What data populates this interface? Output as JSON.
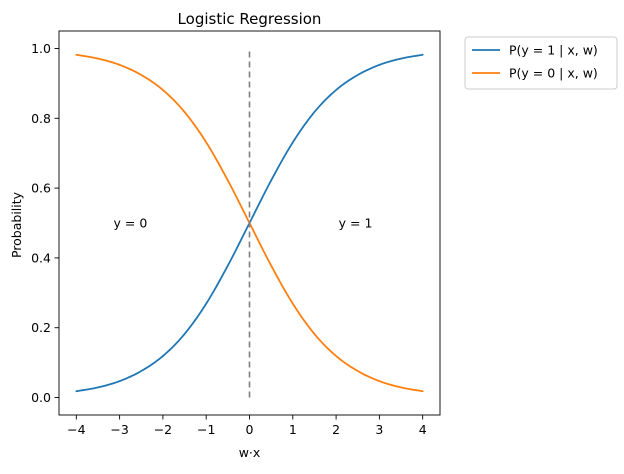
{
  "chart_data": {
    "type": "line",
    "title": "Logistic Regression",
    "xlabel": "w·x",
    "ylabel": "Probability",
    "xlim": [
      -4.4,
      4.4
    ],
    "ylim": [
      -0.05,
      1.05
    ],
    "x_ticks": [
      -4,
      -3,
      -2,
      -1,
      0,
      1,
      2,
      3,
      4
    ],
    "x_tick_labels": [
      "−4",
      "−3",
      "−2",
      "−1",
      "0",
      "1",
      "2",
      "3",
      "4"
    ],
    "y_ticks": [
      0.0,
      0.2,
      0.4,
      0.6,
      0.8,
      1.0
    ],
    "y_tick_labels": [
      "0.0",
      "0.2",
      "0.4",
      "0.6",
      "0.8",
      "1.0"
    ],
    "grid": false,
    "legend_position": "outside upper-right",
    "x": [
      -4,
      -3.5,
      -3,
      -2.5,
      -2,
      -1.5,
      -1,
      -0.5,
      0,
      0.5,
      1,
      1.5,
      2,
      2.5,
      3,
      3.5,
      4
    ],
    "series": [
      {
        "name": "P(y = 1 | x, w)",
        "color": "#1f77b4",
        "values": [
          0.018,
          0.029,
          0.047,
          0.076,
          0.119,
          0.182,
          0.269,
          0.378,
          0.5,
          0.622,
          0.731,
          0.818,
          0.881,
          0.924,
          0.953,
          0.971,
          0.982
        ]
      },
      {
        "name": "P(y = 0 | x, w)",
        "color": "#ff7f0e",
        "values": [
          0.982,
          0.971,
          0.953,
          0.924,
          0.881,
          0.818,
          0.731,
          0.622,
          0.5,
          0.378,
          0.269,
          0.182,
          0.119,
          0.076,
          0.047,
          0.029,
          0.018
        ]
      }
    ],
    "reference_line": {
      "x": 0,
      "y_range": [
        0,
        1
      ],
      "style": "dashed",
      "color": "#808080"
    },
    "annotations": [
      {
        "text": "y = 0",
        "x": -2.75,
        "y": 0.5
      },
      {
        "text": "y = 1",
        "x": 2.45,
        "y": 0.5
      }
    ]
  }
}
